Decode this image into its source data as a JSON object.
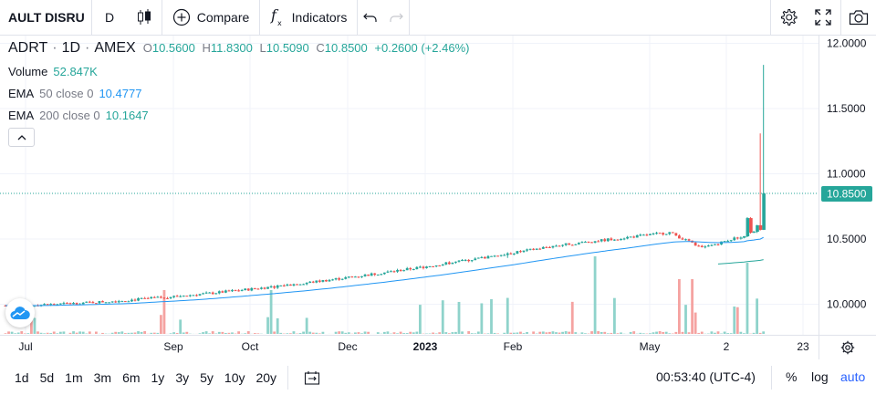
{
  "toolbar": {
    "symbol": "AULT DISRU",
    "interval": "D",
    "compare_label": "Compare",
    "indicators_label": "Indicators"
  },
  "legend": {
    "title": "ADRT",
    "interval": "1D",
    "exchange": "AMEX",
    "o_label": "O",
    "o_value": "10.5600",
    "h_label": "H",
    "h_value": "11.8300",
    "l_label": "L",
    "l_value": "10.5090",
    "c_label": "C",
    "c_value": "10.8500",
    "change": "+0.2600 (+2.46%)",
    "volume_name": "Volume",
    "volume_value": "52.847K",
    "ema50_name": "EMA",
    "ema50_params": "50 close 0",
    "ema50_value": "10.4777",
    "ema200_name": "EMA",
    "ema200_params": "200 close 0",
    "ema200_value": "10.1647"
  },
  "colors": {
    "up": "#26a69a",
    "down": "#ef5350",
    "volume_up": "#8fd3cb",
    "volume_down": "#f5a3a1",
    "ema50": "#2196f3",
    "ema200": "#26a69a",
    "grid": "#f0f3fa",
    "accent": "#2962ff"
  },
  "chart_data": {
    "type": "candlestick",
    "y_ticks": [
      "12.0000",
      "11.5000",
      "11.0000",
      "10.5000",
      "10.0000"
    ],
    "ylim": [
      9.8,
      12.1
    ],
    "x_ticks": [
      "Jul",
      "Sep",
      "Oct",
      "Dec",
      "2023",
      "Feb",
      "May",
      "2",
      "23"
    ],
    "last_price_label": "10.8500",
    "last_price": 10.85
  },
  "bottombar": {
    "ranges": [
      "1d",
      "5d",
      "1m",
      "3m",
      "6m",
      "1y",
      "3y",
      "5y",
      "10y",
      "20y"
    ],
    "time": "00:53:40 (UTC-4)",
    "percent": "%",
    "log": "log",
    "auto": "auto"
  }
}
